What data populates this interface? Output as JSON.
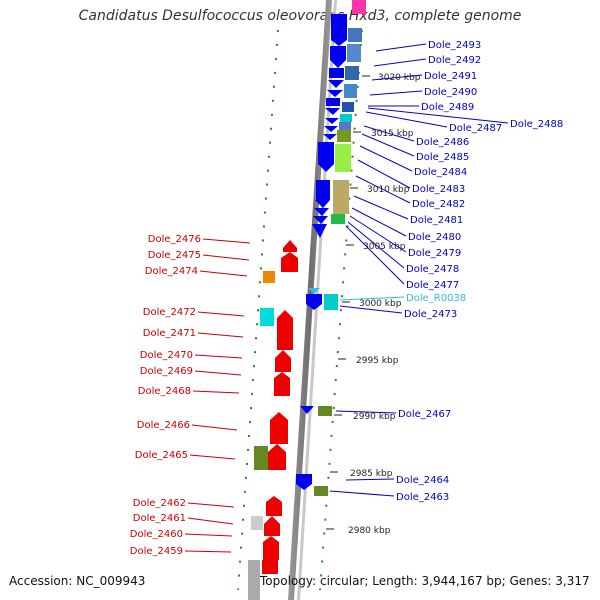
{
  "title": "Candidatus Desulfococcus oleovorans Hxd3, complete genome",
  "footer": {
    "accession": "Accession: NC_009943",
    "summary": "Topology: circular; Length: 3,944,167 bp; Genes: 3,317"
  },
  "colors": {
    "forward_gene": "#ff0000",
    "reverse_gene": "#0000ff",
    "forward_label": "#cc0000",
    "reverse_label": "#0000cc",
    "rna_label": "#33bbdd",
    "backbone": "#808080",
    "tick": "#228b22"
  },
  "scale_ticks": [
    "3020 kbp",
    "3015 kbp",
    "3010 kbp",
    "3005 kbp",
    "3000 kbp",
    "2995 kbp",
    "2990 kbp",
    "2985 kbp",
    "2980 kbp"
  ],
  "reverse_labels": [
    "Dole_2493",
    "Dole_2492",
    "Dole_2491",
    "Dole_2490",
    "Dole_2489",
    "Dole_2487",
    "Dole_2488",
    "Dole_2486",
    "Dole_2485",
    "Dole_2484",
    "Dole_2483",
    "Dole_2482",
    "Dole_2481",
    "Dole_2480",
    "Dole_2479",
    "Dole_2478",
    "Dole_2477",
    "Dole_R0038",
    "Dole_2473",
    "Dole_2467",
    "Dole_2464",
    "Dole_2463"
  ],
  "forward_labels": [
    "Dole_2476",
    "Dole_2475",
    "Dole_2474",
    "Dole_2472",
    "Dole_2471",
    "Dole_2470",
    "Dole_2469",
    "Dole_2468",
    "Dole_2466",
    "Dole_2465",
    "Dole_2462",
    "Dole_2461",
    "Dole_2460",
    "Dole_2459"
  ]
}
